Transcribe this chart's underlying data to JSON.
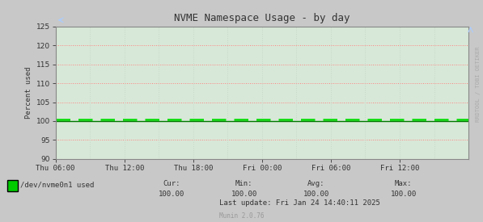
{
  "title": "NVME Namespace Usage - by day",
  "ylabel": "Percent used",
  "background_color": "#c8c8c8",
  "plot_bg_color": "#d8e8d8",
  "grid_color_h": "#ff8080",
  "grid_color_v": "#c8d8c8",
  "ylim": [
    90,
    125
  ],
  "yticks": [
    90,
    95,
    100,
    105,
    110,
    115,
    120,
    125
  ],
  "xtick_labels": [
    "Thu 06:00",
    "Thu 12:00",
    "Thu 18:00",
    "Fri 00:00",
    "Fri 06:00",
    "Fri 12:00"
  ],
  "dashed_line_value": 100.5,
  "dashed_line_color": "#00dd00",
  "solid_line_value": 100.0,
  "solid_line_color": "#007700",
  "legend_label": "/dev/nvme0n1 used",
  "legend_color": "#00cc00",
  "cur_value": "100.00",
  "min_value": "100.00",
  "avg_value": "100.00",
  "max_value": "100.00",
  "last_update": "Last update: Fri Jan 24 14:40:11 2025",
  "munin_version": "Munin 2.0.76",
  "watermark": "RRDTOOL / TOBI OETIKER",
  "title_fontsize": 9,
  "axis_fontsize": 6.5,
  "legend_fontsize": 6.5,
  "stats_fontsize": 6.5,
  "watermark_fontsize": 5
}
